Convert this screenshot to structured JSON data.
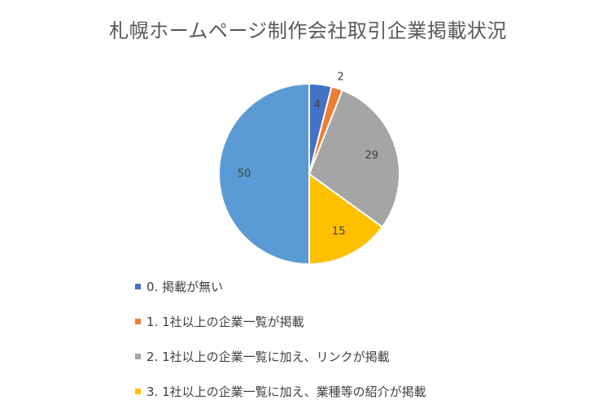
{
  "chart_data": {
    "type": "pie",
    "title": "札幌ホームページ制作会社取引企業掲載状況",
    "categories": [
      "0. 掲載が無い",
      "1. 1社以上の企業一覧が掲載",
      "2. 1社以上の企業一覧に加え、リンクが掲載",
      "3. 1社以上の企業一覧に加え、業種等の紹介が掲載"
    ],
    "series": [
      {
        "values": [
          4,
          2,
          29,
          15
        ]
      }
    ],
    "unassigned": 50,
    "colors": [
      "#4472C4",
      "#ED7D31",
      "#A5A5A5",
      "#FFC000"
    ],
    "unassigned_color": "#5B9BD5",
    "legend_position": "bottom-left",
    "data_labels": true
  }
}
